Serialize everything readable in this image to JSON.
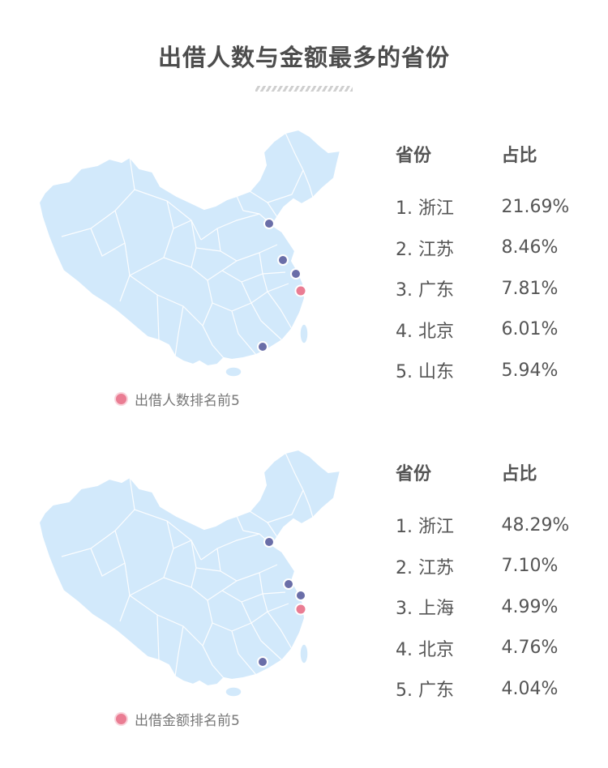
{
  "title": "出借人数与金额最多的省份",
  "colors": {
    "map_fill": "#d2e9fb",
    "map_border": "#ffffff",
    "marker_top": "#ea7d93",
    "marker_other": "#6a6ea8"
  },
  "sections": [
    {
      "legend": "出借人数排名前5",
      "header": {
        "province": "省份",
        "share": "占比"
      },
      "rows": [
        {
          "label": "1. 浙江",
          "value": "21.69%"
        },
        {
          "label": "2. 江苏",
          "value": "8.46%"
        },
        {
          "label": "3. 广东",
          "value": "7.81%"
        },
        {
          "label": "4. 北京",
          "value": "6.01%"
        },
        {
          "label": "5. 山东",
          "value": "5.94%"
        }
      ]
    },
    {
      "legend": "出借金额排名前5",
      "header": {
        "province": "省份",
        "share": "占比"
      },
      "rows": [
        {
          "label": "1. 浙江",
          "value": "48.29%"
        },
        {
          "label": "2. 江苏",
          "value": "7.10%"
        },
        {
          "label": "3. 上海",
          "value": "4.99%"
        },
        {
          "label": "4. 北京",
          "value": "4.76%"
        },
        {
          "label": "5. 广东",
          "value": "4.04%"
        }
      ]
    }
  ]
}
